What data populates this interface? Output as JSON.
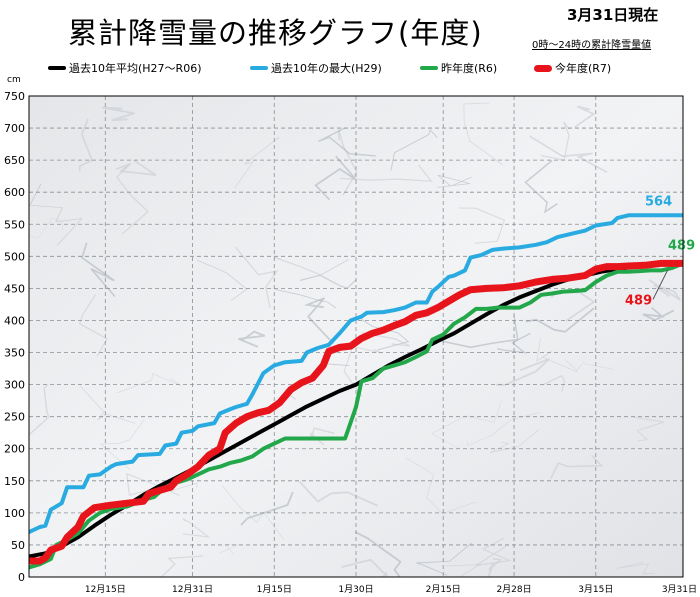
{
  "header": {
    "title": "累計降雪量の推移グラフ(年度)",
    "date": "3月31日現在",
    "note": "0時～24時の累計降雪量値"
  },
  "legend": [
    {
      "label": "過去10年平均(H27～R06)",
      "color": "#000000",
      "thick": false
    },
    {
      "label": "過去10年の最大(H29)",
      "color": "#29abe2",
      "thick": false
    },
    {
      "label": "昨年度(R6)",
      "color": "#22a84a",
      "thick": false
    },
    {
      "label": "今年度(R7)",
      "color": "#e8141b",
      "thick": true
    }
  ],
  "chart_data": {
    "type": "line",
    "title": "累計降雪量の推移グラフ(年度)",
    "ylabel": "cm",
    "ylim": [
      0,
      750
    ],
    "yticks": [
      0,
      50,
      100,
      150,
      200,
      250,
      300,
      350,
      400,
      450,
      500,
      550,
      600,
      650,
      700,
      750
    ],
    "x_range_days": [
      0,
      120
    ],
    "x_ticks": [
      {
        "label": "12月15日",
        "day": 14
      },
      {
        "label": "12月31日",
        "day": 30
      },
      {
        "label": "1月15日",
        "day": 45
      },
      {
        "label": "1月30日",
        "day": 60
      },
      {
        "label": "2月15日",
        "day": 76
      },
      {
        "label": "2月28日",
        "day": 89
      },
      {
        "label": "3月15日",
        "day": 104
      },
      {
        "label": "3月31日",
        "day": 120
      }
    ],
    "grid": true,
    "series": [
      {
        "name": "過去10年平均(H27～R06)",
        "color": "#000000",
        "width": 4,
        "points": [
          [
            0,
            32
          ],
          [
            3,
            37
          ],
          [
            6,
            48
          ],
          [
            9,
            62
          ],
          [
            12,
            80
          ],
          [
            15,
            97
          ],
          [
            18,
            112
          ],
          [
            21,
            128
          ],
          [
            24,
            142
          ],
          [
            27,
            155
          ],
          [
            30,
            168
          ],
          [
            33,
            182
          ],
          [
            36,
            196
          ],
          [
            39,
            210
          ],
          [
            42,
            224
          ],
          [
            45,
            238
          ],
          [
            48,
            252
          ],
          [
            51,
            266
          ],
          [
            54,
            278
          ],
          [
            57,
            290
          ],
          [
            60,
            300
          ],
          [
            63,
            315
          ],
          [
            66,
            330
          ],
          [
            69,
            343
          ],
          [
            72,
            355
          ],
          [
            75,
            368
          ],
          [
            78,
            380
          ],
          [
            81,
            395
          ],
          [
            84,
            410
          ],
          [
            87,
            424
          ],
          [
            90,
            436
          ],
          [
            93,
            446
          ],
          [
            96,
            456
          ],
          [
            99,
            464
          ],
          [
            102,
            470
          ],
          [
            105,
            476
          ],
          [
            108,
            480
          ],
          [
            111,
            484
          ],
          [
            114,
            487
          ],
          [
            117,
            488
          ],
          [
            120,
            489
          ]
        ],
        "end_label": ""
      },
      {
        "name": "過去10年の最大(H29)",
        "color": "#29abe2",
        "width": 4,
        "points": [
          [
            0,
            70
          ],
          [
            2,
            78
          ],
          [
            3,
            80
          ],
          [
            4,
            105
          ],
          [
            6,
            115
          ],
          [
            7,
            140
          ],
          [
            10,
            140
          ],
          [
            11,
            158
          ],
          [
            13,
            160
          ],
          [
            15,
            172
          ],
          [
            16,
            176
          ],
          [
            19,
            180
          ],
          [
            20,
            190
          ],
          [
            24,
            192
          ],
          [
            25,
            205
          ],
          [
            27,
            208
          ],
          [
            28,
            225
          ],
          [
            30,
            228
          ],
          [
            31,
            235
          ],
          [
            34,
            240
          ],
          [
            35,
            255
          ],
          [
            37,
            262
          ],
          [
            38,
            265
          ],
          [
            40,
            270
          ],
          [
            41,
            285
          ],
          [
            43,
            318
          ],
          [
            45,
            330
          ],
          [
            47,
            335
          ],
          [
            50,
            337
          ],
          [
            51,
            350
          ],
          [
            53,
            357
          ],
          [
            55,
            362
          ],
          [
            57,
            380
          ],
          [
            59,
            400
          ],
          [
            61,
            406
          ],
          [
            62,
            412
          ],
          [
            65,
            413
          ],
          [
            67,
            416
          ],
          [
            69,
            420
          ],
          [
            71,
            428
          ],
          [
            73,
            428
          ],
          [
            74,
            445
          ],
          [
            75,
            452
          ],
          [
            77,
            468
          ],
          [
            78,
            470
          ],
          [
            80,
            478
          ],
          [
            81,
            498
          ],
          [
            83,
            502
          ],
          [
            85,
            510
          ],
          [
            87,
            512
          ],
          [
            90,
            514
          ],
          [
            93,
            518
          ],
          [
            95,
            522
          ],
          [
            97,
            530
          ],
          [
            100,
            536
          ],
          [
            102,
            540
          ],
          [
            104,
            548
          ],
          [
            107,
            552
          ],
          [
            108,
            560
          ],
          [
            110,
            564
          ],
          [
            120,
            564
          ]
        ],
        "end_label": "564"
      },
      {
        "name": "昨年度(R6)",
        "color": "#22a84a",
        "width": 4,
        "points": [
          [
            0,
            15
          ],
          [
            2,
            20
          ],
          [
            4,
            28
          ],
          [
            5,
            50
          ],
          [
            7,
            58
          ],
          [
            9,
            68
          ],
          [
            11,
            88
          ],
          [
            13,
            100
          ],
          [
            15,
            106
          ],
          [
            18,
            110
          ],
          [
            21,
            120
          ],
          [
            23,
            125
          ],
          [
            25,
            140
          ],
          [
            27,
            147
          ],
          [
            29,
            152
          ],
          [
            31,
            160
          ],
          [
            33,
            168
          ],
          [
            35,
            172
          ],
          [
            37,
            178
          ],
          [
            39,
            182
          ],
          [
            41,
            188
          ],
          [
            43,
            200
          ],
          [
            45,
            208
          ],
          [
            47,
            216
          ],
          [
            50,
            216
          ],
          [
            53,
            216
          ],
          [
            56,
            216
          ],
          [
            58,
            216
          ],
          [
            60,
            265
          ],
          [
            61,
            305
          ],
          [
            63,
            310
          ],
          [
            65,
            325
          ],
          [
            67,
            330
          ],
          [
            69,
            335
          ],
          [
            71,
            343
          ],
          [
            73,
            352
          ],
          [
            74,
            370
          ],
          [
            76,
            378
          ],
          [
            78,
            395
          ],
          [
            80,
            405
          ],
          [
            82,
            418
          ],
          [
            84,
            418
          ],
          [
            86,
            420
          ],
          [
            88,
            420
          ],
          [
            90,
            420
          ],
          [
            92,
            428
          ],
          [
            94,
            440
          ],
          [
            96,
            442
          ],
          [
            98,
            445
          ],
          [
            100,
            446
          ],
          [
            102,
            447
          ],
          [
            104,
            460
          ],
          [
            106,
            470
          ],
          [
            108,
            476
          ],
          [
            110,
            476
          ],
          [
            112,
            477
          ],
          [
            114,
            478
          ],
          [
            116,
            478
          ],
          [
            118,
            482
          ],
          [
            120,
            489
          ]
        ],
        "end_label": "489"
      },
      {
        "name": "今年度(R7)",
        "color": "#e8141b",
        "width": 7,
        "points": [
          [
            0,
            25
          ],
          [
            2,
            25
          ],
          [
            3,
            30
          ],
          [
            4,
            42
          ],
          [
            6,
            48
          ],
          [
            7,
            62
          ],
          [
            9,
            78
          ],
          [
            10,
            95
          ],
          [
            12,
            108
          ],
          [
            15,
            112
          ],
          [
            18,
            115
          ],
          [
            21,
            118
          ],
          [
            22,
            130
          ],
          [
            24,
            135
          ],
          [
            26,
            140
          ],
          [
            27,
            150
          ],
          [
            29,
            160
          ],
          [
            31,
            172
          ],
          [
            33,
            190
          ],
          [
            35,
            200
          ],
          [
            36,
            225
          ],
          [
            38,
            240
          ],
          [
            40,
            250
          ],
          [
            42,
            256
          ],
          [
            44,
            260
          ],
          [
            46,
            272
          ],
          [
            48,
            292
          ],
          [
            50,
            303
          ],
          [
            52,
            310
          ],
          [
            54,
            330
          ],
          [
            55,
            352
          ],
          [
            57,
            358
          ],
          [
            59,
            360
          ],
          [
            61,
            372
          ],
          [
            63,
            380
          ],
          [
            65,
            385
          ],
          [
            67,
            392
          ],
          [
            69,
            398
          ],
          [
            71,
            408
          ],
          [
            73,
            412
          ],
          [
            75,
            420
          ],
          [
            77,
            430
          ],
          [
            79,
            440
          ],
          [
            81,
            448
          ],
          [
            84,
            450
          ],
          [
            87,
            451
          ],
          [
            90,
            454
          ],
          [
            93,
            460
          ],
          [
            96,
            464
          ],
          [
            99,
            466
          ],
          [
            102,
            470
          ],
          [
            104,
            480
          ],
          [
            106,
            484
          ],
          [
            108,
            484
          ],
          [
            110,
            485
          ],
          [
            113,
            486
          ],
          [
            116,
            489
          ],
          [
            120,
            489
          ]
        ],
        "end_label": "489"
      }
    ]
  }
}
